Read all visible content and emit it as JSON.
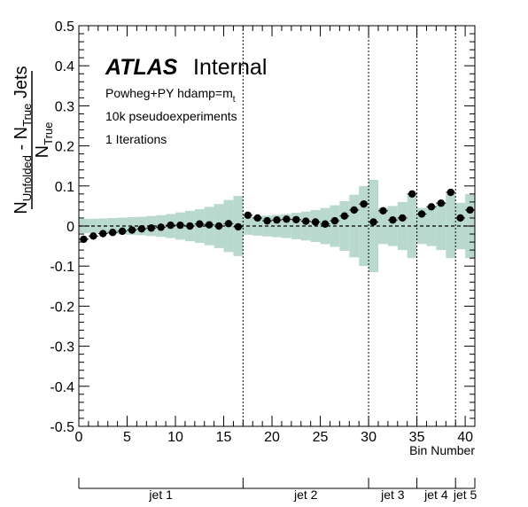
{
  "chart_data": {
    "type": "scatter",
    "ylabel": {
      "top": {
        "main": "N",
        "sub": "Unfolded",
        "middle": " - N",
        "sub2": "True",
        "end": " Jets"
      },
      "bottom": {
        "main": "N",
        "sub": "True"
      }
    },
    "xlabel": "Bin Number",
    "xlim": [
      0,
      41
    ],
    "ylim": [
      -0.5,
      0.5
    ],
    "xticks": [
      0,
      5,
      10,
      15,
      20,
      25,
      30,
      35,
      40
    ],
    "yticks": [
      -0.5,
      -0.4,
      -0.3,
      -0.2,
      -0.1,
      0,
      0.1,
      0.2,
      0.3,
      0.4,
      0.5
    ],
    "ytick_labels": [
      "-0.5",
      "-0.4",
      "-0.3",
      "-0.2",
      "-0.1",
      "0",
      "0.1",
      "0.2",
      "0.3",
      "0.4",
      "0.5"
    ],
    "grid": false,
    "annotations": {
      "atlas": "ATLAS",
      "internal": "Internal",
      "generator": "Powheg+PY hdamp=m",
      "generator_sub": "t",
      "pseudo": "10k pseudoexperiments",
      "iterations": "1 Iterations"
    },
    "points": {
      "x": [
        0.5,
        1.5,
        2.5,
        3.5,
        4.5,
        5.5,
        6.5,
        7.5,
        8.5,
        9.5,
        10.5,
        11.5,
        12.5,
        13.5,
        14.5,
        15.5,
        16.5,
        17.5,
        18.5,
        19.5,
        20.5,
        21.5,
        22.5,
        23.5,
        24.5,
        25.5,
        26.5,
        27.5,
        28.5,
        29.5,
        30.5,
        31.5,
        32.5,
        33.5,
        34.5,
        35.5,
        36.5,
        37.5,
        38.5,
        39.5,
        40.5
      ],
      "y": [
        -0.033,
        -0.025,
        -0.019,
        -0.016,
        -0.013,
        -0.01,
        -0.007,
        -0.005,
        -0.003,
        0.002,
        0.002,
        0.0,
        0.005,
        0.003,
        0.0,
        0.006,
        -0.002,
        0.027,
        0.02,
        0.013,
        0.015,
        0.017,
        0.016,
        0.012,
        0.01,
        0.005,
        0.013,
        0.025,
        0.04,
        0.055,
        0.01,
        0.038,
        0.015,
        0.02,
        0.08,
        0.03,
        0.048,
        0.057,
        0.084,
        0.02,
        0.04
      ],
      "uncertainty": [
        0.018,
        0.018,
        0.019,
        0.02,
        0.021,
        0.022,
        0.023,
        0.025,
        0.027,
        0.03,
        0.034,
        0.038,
        0.042,
        0.048,
        0.055,
        0.065,
        0.075,
        0.022,
        0.024,
        0.026,
        0.028,
        0.03,
        0.033,
        0.036,
        0.04,
        0.045,
        0.052,
        0.062,
        0.078,
        0.1,
        0.115,
        0.045,
        0.05,
        0.06,
        0.08,
        0.045,
        0.05,
        0.06,
        0.08,
        0.058,
        0.08
      ]
    },
    "separators": [
      17,
      30,
      35,
      39
    ],
    "groups": [
      {
        "label": "jet 1",
        "start": 0,
        "end": 17
      },
      {
        "label": "jet 2",
        "start": 17,
        "end": 30
      },
      {
        "label": "jet 3",
        "start": 30,
        "end": 35
      },
      {
        "label": "jet 4",
        "start": 35,
        "end": 39
      },
      {
        "label": "jet 5",
        "start": 39,
        "end": 41
      }
    ],
    "colors": {
      "band": "#b9d9cf",
      "marker": "#000000"
    }
  }
}
